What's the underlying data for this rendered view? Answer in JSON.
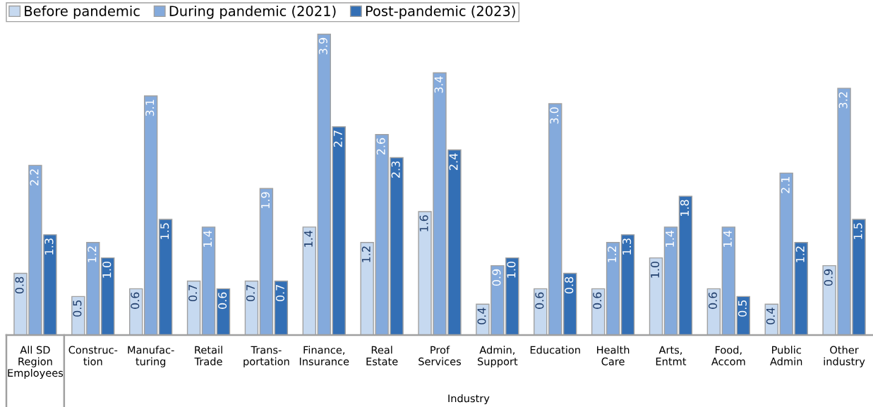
{
  "chart_data": {
    "type": "bar",
    "xlabel": "Industry",
    "categories": [
      "All SD\nRegion\nEmployees",
      "Construc-\ntion",
      "Manufac-\nturing",
      "Retail\nTrade",
      "Trans-\nportation",
      "Finance,\nInsurance",
      "Real\nEstate",
      "Prof\nServices",
      "Admin,\nSupport",
      "Education",
      "Health\nCare",
      "Arts,\nEntmt",
      "Food,\nAccom",
      "Public\nAdmin",
      "Other\nindustry"
    ],
    "series": [
      {
        "name": "Before pandemic",
        "color": "#c6d9f0",
        "values": [
          0.8,
          0.5,
          0.6,
          0.7,
          0.7,
          1.4,
          1.2,
          1.6,
          0.4,
          0.6,
          0.6,
          1,
          0.6,
          0.4,
          0.9
        ],
        "value_labels": [
          "0.8",
          "0.5",
          "0.6",
          "0.7",
          "0.7",
          "1.4",
          "1.2",
          "1.6",
          "0.4",
          "0.6",
          "0.6",
          "1.0",
          "0.6",
          "0.4",
          "0.9"
        ]
      },
      {
        "name": "During pandemic (2021)",
        "color": "#84aadc",
        "values": [
          2.2,
          1.2,
          3.1,
          1.4,
          1.9,
          3.9,
          2.6,
          3.4,
          0.9,
          3,
          1.2,
          1.4,
          1.4,
          2.1,
          3.2
        ],
        "value_labels": [
          "2.2",
          "1.2",
          "3.1",
          "1.4",
          "1.9",
          "3.9",
          "2.6",
          "3.4",
          "0.9",
          "3.0",
          "1.2",
          "1.4",
          "1.4",
          "2.1",
          "3.2"
        ]
      },
      {
        "name": "Post-pandemic (2023)",
        "color": "#336fb5",
        "values": [
          1.3,
          1,
          1.5,
          0.6,
          0.7,
          2.7,
          2.3,
          2.4,
          1,
          0.8,
          1.3,
          1.8,
          0.5,
          1.2,
          1.5
        ],
        "value_labels": [
          "1.3",
          "1.0",
          "1.5",
          "0.6",
          "0.7",
          "2.7",
          "2.3",
          "2.4",
          "1.0",
          "0.8",
          "1.3",
          "1.8",
          "0.5",
          "1.2",
          "1.5"
        ]
      }
    ],
    "legend": "top left"
  }
}
